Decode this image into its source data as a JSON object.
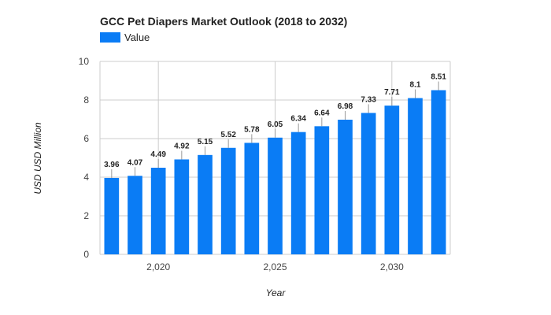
{
  "chart_data": {
    "type": "bar",
    "title": "GCC Pet Diapers Market Outlook (2018 to 2032)",
    "xlabel": "Year",
    "ylabel": "USD USD Million",
    "legend": {
      "position": "top-left",
      "entries": [
        "Value"
      ]
    },
    "colors": {
      "bar": "#0a7cf5"
    },
    "grid": true,
    "ylim": [
      0,
      10
    ],
    "yticks": [
      0,
      2,
      4,
      6,
      8,
      10
    ],
    "xticks": [
      2020,
      2025,
      2030
    ],
    "xtick_labels": [
      "2,020",
      "2,025",
      "2,030"
    ],
    "x": [
      2018,
      2019,
      2020,
      2021,
      2022,
      2023,
      2024,
      2025,
      2026,
      2027,
      2028,
      2029,
      2030,
      2031,
      2032
    ],
    "series": [
      {
        "name": "Value",
        "values": [
          3.96,
          4.07,
          4.49,
          4.92,
          5.15,
          5.52,
          5.78,
          6.05,
          6.34,
          6.64,
          6.98,
          7.33,
          7.71,
          8.1,
          8.51
        ],
        "labels": [
          "3.96",
          "4.07",
          "4.49",
          "4.92",
          "5.15",
          "5.52",
          "5.78",
          "6.05",
          "6.34",
          "6.64",
          "6.98",
          "7.33",
          "7.71",
          "8.1",
          "8.51"
        ]
      }
    ]
  }
}
